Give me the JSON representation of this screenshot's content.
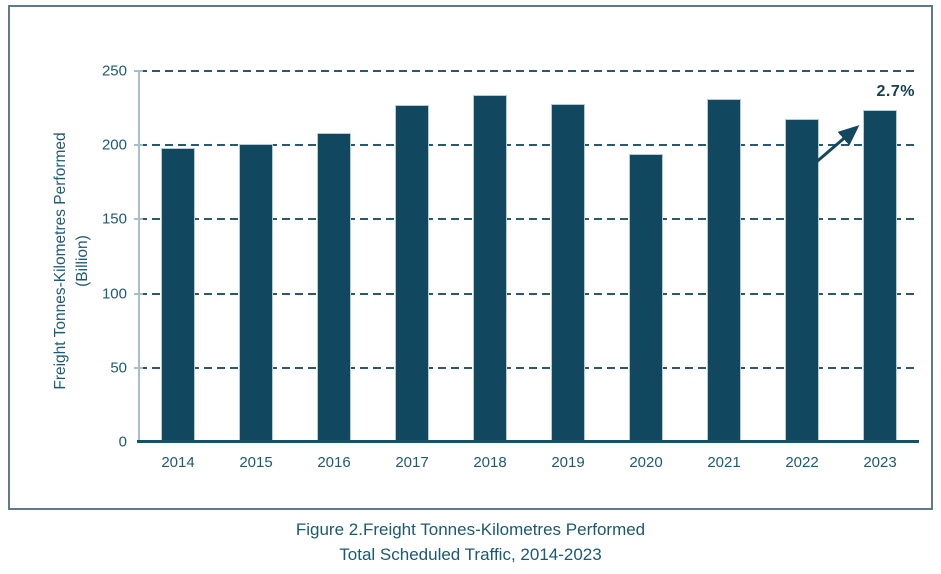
{
  "figure": {
    "caption_line1": "Figure 2.Freight Tonnes-Kilometres Performed",
    "caption_line2": "Total Scheduled Traffic, 2014-2023"
  },
  "chart_data": {
    "type": "bar",
    "categories": [
      "2014",
      "2015",
      "2016",
      "2017",
      "2018",
      "2019",
      "2020",
      "2021",
      "2022",
      "2023"
    ],
    "values": [
      198,
      201,
      208,
      227,
      234,
      228,
      194,
      231,
      218,
      224
    ],
    "title": "",
    "xlabel": "",
    "ylabel": "Freight Tonnes-Kilometres Performed (Billion)",
    "ylabel_lines": [
      "Freight Tonnes-Kilometres Performed",
      "(Billion)"
    ],
    "ylim": [
      0,
      250
    ],
    "yticks": [
      0,
      50,
      100,
      150,
      200,
      250
    ],
    "grid": "horizontal-dashed",
    "legend": "none",
    "annotation": {
      "label": "2.7%",
      "target_category": "2023",
      "meaning": "growth of 2023 vs 2022"
    },
    "colors": {
      "bar": "#12485f",
      "bar_edge": "#b7cbd6",
      "grid": "#2b5871",
      "axis_text": "#1d5a74",
      "x_axis_line": "#17506b",
      "y_axis_line": "#a6bfcb",
      "frame_border": "#5d7b8c",
      "annotation_text": "#123f55",
      "caption_text": "#1a5972"
    }
  }
}
